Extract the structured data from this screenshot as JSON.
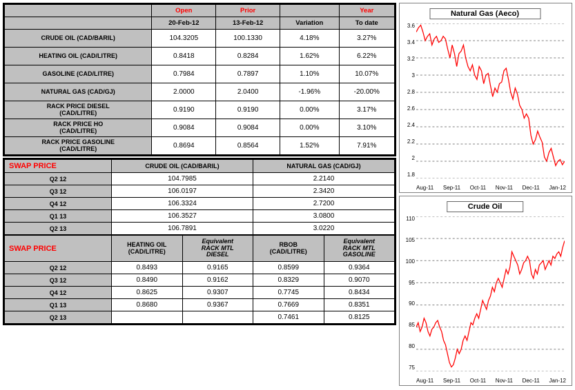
{
  "table1": {
    "headers": {
      "open": "Open",
      "prior": "Prior",
      "year": "Year",
      "open_date": "20-Feb-12",
      "prior_date": "13-Feb-12",
      "variation": "Variation",
      "to_date": "To date"
    },
    "rows": [
      {
        "label": "CRUDE OIL (CAD/BARIL)",
        "open": "104.3205",
        "prior": "100.1330",
        "var": "4.18%",
        "ytd": "3.27%"
      },
      {
        "label": "HEATING OIL (CAD/LITRE)",
        "open": "0.8418",
        "prior": "0.8284",
        "var": "1.62%",
        "ytd": "6.22%"
      },
      {
        "label": "GASOLINE (CAD/LITRE)",
        "open": "0.7984",
        "prior": "0.7897",
        "var": "1.10%",
        "ytd": "10.07%"
      },
      {
        "label": "NATURAL GAS (CAD/GJ)",
        "open": "2.0000",
        "prior": "2.0400",
        "var": "-1.96%",
        "ytd": "-20.00%"
      },
      {
        "label": "RACK PRICE DIESEL\n(CAD/LITRE)",
        "open": "0.9190",
        "prior": "0.9190",
        "var": "0.00%",
        "ytd": "3.17%"
      },
      {
        "label": "RACK PRICE HO\n(CAD/LITRE)",
        "open": "0.9084",
        "prior": "0.9084",
        "var": "0.00%",
        "ytd": "3.10%"
      },
      {
        "label": "RACK PRICE GASOLINE\n(CAD/LITRE)",
        "open": "0.8694",
        "prior": "0.8564",
        "var": "1.52%",
        "ytd": "7.91%"
      }
    ]
  },
  "swap1": {
    "title": "SWAP PRICE",
    "col1": "CRUDE OIL (CAD/BARIL)",
    "col2": "NATURAL GAS (CAD/GJ)",
    "rows": [
      {
        "q": "Q2 12",
        "a": "104.7985",
        "b": "2.2140"
      },
      {
        "q": "Q3 12",
        "a": "106.0197",
        "b": "2.3420"
      },
      {
        "q": "Q4 12",
        "a": "106.3324",
        "b": "2.7200"
      },
      {
        "q": "Q1 13",
        "a": "106.3527",
        "b": "3.0800"
      },
      {
        "q": "Q2 13",
        "a": "106.7891",
        "b": "3.0220"
      }
    ]
  },
  "swap2": {
    "title": "SWAP PRICE",
    "cols": [
      "HEATING OIL\n(CAD/LITRE)",
      "Equivalent\nRACK MTL\nDIESEL",
      "RBOB\n(CAD/LITRE)",
      "Equivalent\nRACK MTL\nGASOLINE"
    ],
    "rows": [
      {
        "q": "Q2 12",
        "v": [
          "0.8493",
          "0.9165",
          "0.8599",
          "0.9364"
        ]
      },
      {
        "q": "Q3 12",
        "v": [
          "0.8490",
          "0.9162",
          "0.8329",
          "0.9070"
        ]
      },
      {
        "q": "Q4 12",
        "v": [
          "0.8625",
          "0.9307",
          "0.7745",
          "0.8434"
        ]
      },
      {
        "q": "Q1 13",
        "v": [
          "0.8680",
          "0.9367",
          "0.7669",
          "0.8351"
        ]
      },
      {
        "q": "Q2 13",
        "v": [
          "",
          "",
          "0.7461",
          "0.8125"
        ]
      }
    ]
  },
  "chart_ng": {
    "title": "Natural Gas (Aeco)",
    "type": "line",
    "line_color": "#ff0000",
    "background_color": "#ffffff",
    "grid_color": "#808080",
    "grid_dash": "3,3",
    "line_width": 1.3,
    "ylim": [
      1.8,
      3.6
    ],
    "ytick_step": 0.2,
    "y_ticks": [
      "3.6",
      "3.4",
      "3.2",
      "3",
      "2.8",
      "2.6",
      "2.4",
      "2.2",
      "2",
      "1.8"
    ],
    "x_ticks": [
      "Aug-11",
      "Sep-11",
      "Oct-11",
      "Nov-11",
      "Dec-11",
      "Jan-12"
    ],
    "data": [
      3.5,
      3.55,
      3.58,
      3.5,
      3.4,
      3.45,
      3.48,
      3.35,
      3.42,
      3.45,
      3.38,
      3.4,
      3.45,
      3.42,
      3.3,
      3.2,
      3.35,
      3.25,
      3.1,
      3.25,
      3.28,
      3.35,
      3.2,
      3.1,
      3.05,
      3.12,
      3.0,
      2.95,
      3.1,
      3.05,
      2.9,
      3.0,
      3.02,
      2.88,
      2.75,
      2.85,
      2.8,
      2.9,
      2.92,
      3.05,
      3.08,
      2.95,
      2.8,
      2.72,
      2.85,
      2.78,
      2.65,
      2.6,
      2.5,
      2.55,
      2.5,
      2.3,
      2.2,
      2.25,
      2.35,
      2.28,
      2.22,
      2.05,
      2.0,
      2.1,
      2.15,
      2.05,
      1.95,
      2.0,
      2.02,
      1.96,
      2.0
    ]
  },
  "chart_co": {
    "title": "Crude Oil",
    "type": "line",
    "line_color": "#ff0000",
    "background_color": "#ffffff",
    "grid_color": "#808080",
    "grid_dash": "3,3",
    "line_width": 1.3,
    "ylim": [
      75,
      110
    ],
    "ytick_step": 5,
    "y_ticks": [
      "110",
      "105",
      "100",
      "95",
      "90",
      "85",
      "80",
      "75"
    ],
    "x_ticks": [
      "Aug-11",
      "Sep-11",
      "Oct-11",
      "Nov-11",
      "Dec-11",
      "Jan-12"
    ],
    "data": [
      85,
      86,
      84,
      85,
      87,
      86,
      84,
      83,
      84.5,
      85,
      86,
      86.5,
      85,
      84,
      82,
      81,
      79,
      77,
      76,
      76.5,
      78,
      80,
      79,
      80,
      82,
      83,
      82,
      84,
      86,
      85.5,
      87,
      88,
      87,
      89,
      91,
      90,
      89,
      91,
      92,
      94,
      93,
      95,
      96,
      95,
      94,
      96,
      98,
      97,
      98.5,
      102,
      101,
      100,
      99,
      97,
      98,
      99.5,
      100,
      101,
      100,
      97,
      96,
      98,
      97,
      99,
      99.5,
      100,
      98,
      99,
      100,
      99,
      101,
      100.5,
      101.5,
      102,
      101,
      103,
      104.5
    ]
  }
}
